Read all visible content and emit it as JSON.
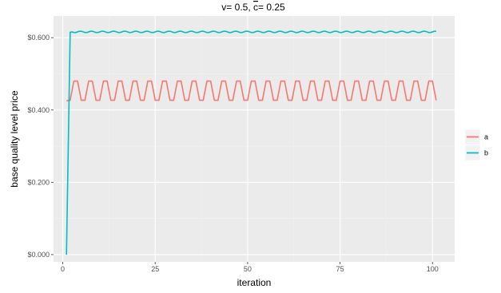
{
  "chart_data": {
    "type": "line",
    "title_prefix": "v= 0.5, ",
    "title_symbol": "c",
    "title_suffix": "= 0.25",
    "xlabel": "iteration",
    "ylabel": "base quality level price",
    "xlim": [
      -2.5,
      106
    ],
    "ylim": [
      -0.02,
      0.66
    ],
    "x_ticks": [
      0,
      25,
      50,
      75,
      100
    ],
    "x_tick_labels": [
      "0",
      "25",
      "50",
      "75",
      "100"
    ],
    "y_ticks": [
      0,
      0.2,
      0.4,
      0.6
    ],
    "y_tick_labels": [
      "$0.000",
      "$0.200",
      "$0.400",
      "$0.600"
    ],
    "grid": true,
    "legend_position": "right",
    "series": [
      {
        "name": "a",
        "color": "#F8766D",
        "pattern": "oscillating",
        "x_start": 1,
        "x_end": 101,
        "first_value": 0.425,
        "high": 0.48,
        "low": 0.427,
        "high_run_start": 2,
        "period": 4,
        "phase_lengths": [
          2,
          2
        ],
        "transition_length": 1,
        "last_value": 0.427
      },
      {
        "name": "b",
        "color": "#00BFC4",
        "pattern": "wavy",
        "x_start": 1,
        "x_end": 101,
        "first_value": 0.0,
        "second_value": 0.615,
        "level": 0.616,
        "amplitude": 0.002,
        "period": 3
      }
    ]
  }
}
